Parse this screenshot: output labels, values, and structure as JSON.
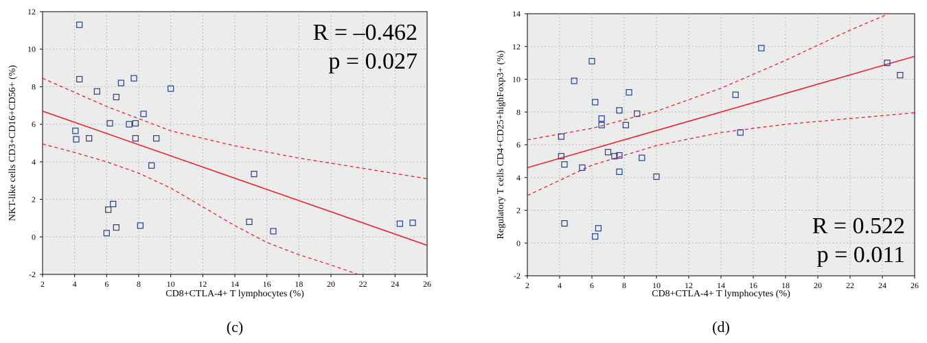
{
  "chart_data": [
    {
      "type": "scatter",
      "panel_label": "(c)",
      "xlabel": "CD8+CTLA-4+ T lymphocytes (%)",
      "ylabel": "NKT-like cells CD3+CD16+CD56+ (%)",
      "xlim": [
        2,
        26
      ],
      "ylim": [
        -2,
        12
      ],
      "xticks": [
        2,
        4,
        6,
        8,
        10,
        12,
        14,
        16,
        18,
        20,
        22,
        24,
        26
      ],
      "yticks": [
        -2,
        0,
        2,
        4,
        6,
        8,
        10,
        12
      ],
      "grid": true,
      "annotation_lines": [
        "R = –0.462",
        "p = 0.027"
      ],
      "annotation_position": "top-right",
      "points": [
        [
          4.3,
          11.3
        ],
        [
          4.3,
          8.4
        ],
        [
          5.4,
          7.75
        ],
        [
          6.9,
          8.2
        ],
        [
          7.7,
          8.45
        ],
        [
          6.6,
          7.45
        ],
        [
          10.0,
          7.9
        ],
        [
          8.3,
          6.55
        ],
        [
          6.2,
          6.05
        ],
        [
          7.4,
          6.0
        ],
        [
          7.8,
          6.05
        ],
        [
          4.05,
          5.65
        ],
        [
          4.1,
          5.2
        ],
        [
          4.9,
          5.25
        ],
        [
          7.8,
          5.25
        ],
        [
          9.1,
          5.25
        ],
        [
          8.8,
          3.8
        ],
        [
          15.2,
          3.35
        ],
        [
          6.4,
          1.75
        ],
        [
          6.1,
          1.45
        ],
        [
          6.6,
          0.5
        ],
        [
          8.1,
          0.6
        ],
        [
          6.0,
          0.2
        ],
        [
          14.9,
          0.8
        ],
        [
          16.4,
          0.3
        ],
        [
          24.3,
          0.7
        ],
        [
          25.1,
          0.75
        ]
      ],
      "fit_line": {
        "x": [
          2,
          26
        ],
        "y": [
          6.7,
          -0.45
        ]
      },
      "ci_upper": {
        "x": [
          2,
          6,
          10,
          14,
          18,
          22,
          26
        ],
        "y": [
          8.45,
          6.95,
          5.65,
          4.85,
          4.2,
          3.65,
          3.1
        ]
      },
      "ci_lower": {
        "x": [
          2,
          4,
          6,
          8,
          10,
          12,
          14,
          16,
          18,
          20,
          21.7
        ],
        "y": [
          4.95,
          4.5,
          4.0,
          3.4,
          2.6,
          1.6,
          0.6,
          -0.3,
          -0.95,
          -1.5,
          -2.0
        ]
      },
      "colors": {
        "points": "#1f3f8f",
        "fit": "#e8202a",
        "background": "#ececec"
      }
    },
    {
      "type": "scatter",
      "panel_label": "(d)",
      "xlabel": "CD8+CTLA-4+ T lymphocytes (%)",
      "ylabel": "Regulatory T cells CD4+CD25+highFoxp3+ (%)",
      "xlim": [
        2,
        26
      ],
      "ylim": [
        -2,
        14
      ],
      "xticks": [
        2,
        4,
        6,
        8,
        10,
        12,
        14,
        16,
        18,
        20,
        22,
        24,
        26
      ],
      "yticks": [
        -2,
        0,
        2,
        4,
        6,
        8,
        10,
        12,
        14
      ],
      "grid": true,
      "annotation_lines": [
        "R = 0.522",
        "p = 0.011"
      ],
      "annotation_position": "bottom-right",
      "points": [
        [
          6.0,
          11.1
        ],
        [
          4.9,
          9.9
        ],
        [
          6.2,
          8.6
        ],
        [
          8.3,
          9.2
        ],
        [
          6.6,
          7.6
        ],
        [
          6.6,
          7.2
        ],
        [
          7.7,
          8.1
        ],
        [
          8.8,
          7.9
        ],
        [
          8.1,
          7.2
        ],
        [
          4.1,
          6.5
        ],
        [
          4.1,
          5.3
        ],
        [
          4.3,
          4.8
        ],
        [
          5.4,
          4.6
        ],
        [
          7.0,
          5.55
        ],
        [
          7.4,
          5.3
        ],
        [
          7.7,
          5.35
        ],
        [
          7.7,
          4.35
        ],
        [
          9.1,
          5.2
        ],
        [
          10.0,
          4.05
        ],
        [
          4.3,
          1.2
        ],
        [
          6.4,
          0.9
        ],
        [
          6.2,
          0.4
        ],
        [
          14.9,
          9.05
        ],
        [
          15.2,
          6.75
        ],
        [
          16.5,
          11.9
        ],
        [
          24.3,
          11.0
        ],
        [
          25.1,
          10.25
        ]
      ],
      "fit_line": {
        "x": [
          2,
          26
        ],
        "y": [
          4.6,
          11.4
        ]
      },
      "ci_upper": {
        "x": [
          2,
          6,
          10,
          14,
          18,
          22,
          24.4
        ],
        "y": [
          6.3,
          7.0,
          8.05,
          9.45,
          11.15,
          13.0,
          14.0
        ]
      },
      "ci_lower": {
        "x": [
          2,
          6,
          10,
          14,
          18,
          22,
          26
        ],
        "y": [
          2.9,
          4.75,
          5.95,
          6.75,
          7.25,
          7.6,
          7.95
        ]
      },
      "colors": {
        "points": "#1f3f8f",
        "fit": "#e8202a",
        "background": "#ececec"
      }
    }
  ]
}
